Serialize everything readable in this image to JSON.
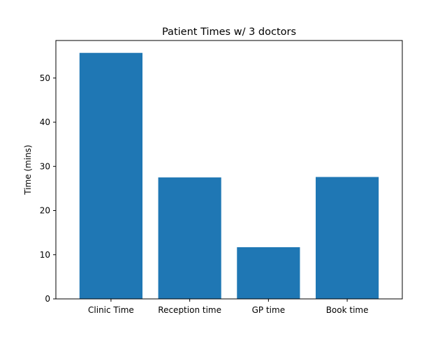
{
  "chart_data": {
    "type": "bar",
    "title": "Patient Times w/ 3 doctors",
    "xlabel": "",
    "ylabel": "Time (mins)",
    "categories": [
      "Clinic Time",
      "Reception time",
      "GP time",
      "Book time"
    ],
    "values": [
      55.7,
      27.5,
      11.7,
      27.6
    ],
    "ylim": [
      0,
      58.5
    ],
    "yticks": [
      0,
      10,
      20,
      30,
      40,
      50
    ],
    "bar_color": "#1f77b4",
    "grid": false,
    "legend": "none"
  }
}
